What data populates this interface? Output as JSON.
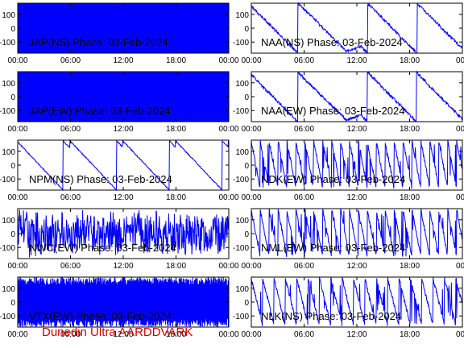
{
  "footer": "Dunedin Ultra AARDDVARK",
  "colors": {
    "trace": "#0000ff",
    "axis": "#000000",
    "background": "#ffffff",
    "footer": "#cc0000"
  },
  "chart_data": [
    {
      "type": "line",
      "station": "JAP(NS)",
      "label": "JAP(NS) Phase: 03-Feb-2024",
      "trace_style": "saturated",
      "ylim": [
        -180,
        180
      ],
      "yticks": [
        100,
        0,
        -100
      ],
      "xticks": [
        "00:00",
        "06:00",
        "12:00",
        "18:00",
        "00:00"
      ]
    },
    {
      "type": "line",
      "station": "NAA(NS)",
      "label": "NAA(NS) Phase: 03-Feb-2024",
      "trace_style": "phase-drift",
      "ylim": [
        -180,
        180
      ],
      "yticks": [
        100,
        0,
        -100
      ],
      "xticks": [
        "00:00",
        "06:00",
        "12:00",
        "18:00",
        "00:"
      ]
    },
    {
      "type": "line",
      "station": "JAP(EW)",
      "label": "JAP(EW) Phase: 03-Feb-2024",
      "trace_style": "saturated",
      "ylim": [
        -180,
        180
      ],
      "yticks": [
        100,
        0,
        -100
      ],
      "xticks": [
        "00:00",
        "06:00",
        "12:00",
        "18:00",
        "00:00"
      ]
    },
    {
      "type": "line",
      "station": "NAA(EW)",
      "label": "NAA(EW) Phase: 03-Feb-2024",
      "trace_style": "phase-drift",
      "ylim": [
        -180,
        180
      ],
      "yticks": [
        100,
        0,
        -100
      ],
      "xticks": [
        "00:00",
        "06:00",
        "12:00",
        "18:00",
        "00:"
      ]
    },
    {
      "type": "line",
      "station": "NPM(NS)",
      "label": "NPM(NS) Phase: 03-Feb-2024",
      "trace_style": "sawtooth-slow",
      "ylim": [
        -180,
        180
      ],
      "yticks": [
        100,
        0,
        -100
      ],
      "xticks": [
        "00:00",
        "06:00",
        "12:00",
        "18:00",
        "00:00"
      ]
    },
    {
      "type": "line",
      "station": "NDK(EW)",
      "label": "NDK(EW) Phase: 03-Feb-2024",
      "trace_style": "sawtooth-fast",
      "ylim": [
        -180,
        180
      ],
      "yticks": [
        100,
        0,
        -100
      ],
      "xticks": [
        "00:00",
        "06:00",
        "12:00",
        "18:00",
        "00:"
      ]
    },
    {
      "type": "line",
      "station": "NWC(EW)",
      "label": "NWC(EW) Phase: 03-Feb-2024",
      "trace_style": "noisy",
      "ylim": [
        -180,
        180
      ],
      "yticks": [
        100,
        0,
        -100
      ],
      "xticks": [
        "00:00",
        "06:00",
        "12:00",
        "18:00",
        "00:00"
      ]
    },
    {
      "type": "line",
      "station": "NML(EW)",
      "label": "NML(EW) Phase: 03-Feb-2024",
      "trace_style": "sawtooth-fast",
      "ylim": [
        -180,
        180
      ],
      "yticks": [
        100,
        0,
        -100
      ],
      "xticks": [
        "00:00",
        "06:00",
        "12:00",
        "18:00",
        "00:"
      ]
    },
    {
      "type": "line",
      "station": "VTX(EW)",
      "label": "VTX(EW) Phase: 03-Feb-2024",
      "trace_style": "dense",
      "ylim": [
        -180,
        180
      ],
      "yticks": [
        100,
        0,
        -100
      ],
      "xticks": [
        "00:00",
        "06:00",
        "12:00",
        "18:00",
        "00:00"
      ]
    },
    {
      "type": "line",
      "station": "NLK(NS)",
      "label": "NLK(NS) Phase: 03-Feb-2024",
      "trace_style": "sawtooth-medium",
      "ylim": [
        -180,
        180
      ],
      "yticks": [
        100,
        0,
        -100
      ],
      "xticks": [
        "00:00",
        "06:00",
        "12:00",
        "18:00",
        "00:"
      ]
    }
  ]
}
